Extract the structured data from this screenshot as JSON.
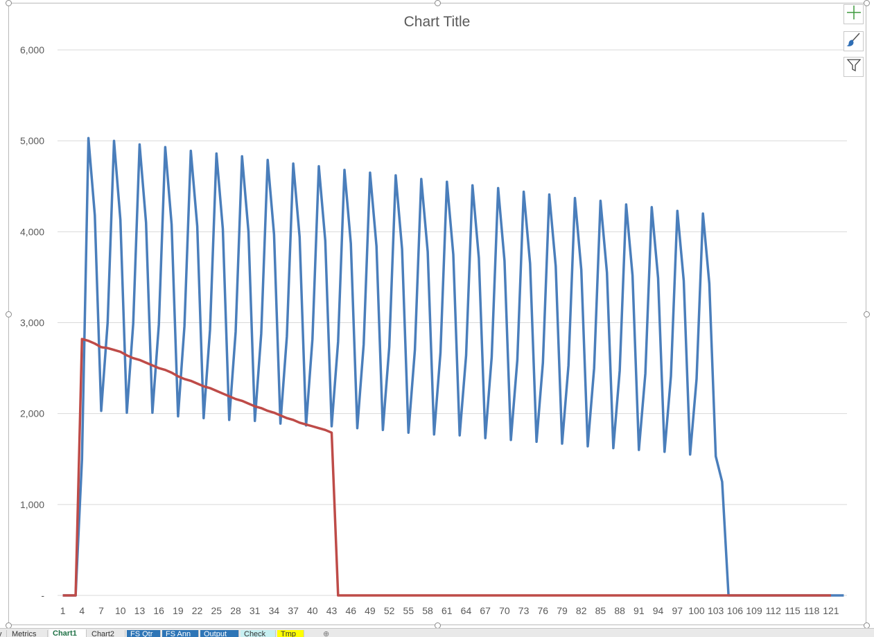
{
  "chart_data": {
    "type": "line",
    "title": "Chart Title",
    "ylim": [
      0,
      6000
    ],
    "yticks": [
      0,
      1000,
      2000,
      3000,
      4000,
      5000,
      6000
    ],
    "ytick_labels": [
      "-",
      "1,000",
      "2,000",
      "3,000",
      "4,000",
      "5,000",
      "6,000"
    ],
    "xtick_labels": [
      "1",
      "4",
      "7",
      "10",
      "13",
      "16",
      "19",
      "22",
      "25",
      "28",
      "31",
      "34",
      "37",
      "40",
      "43",
      "46",
      "49",
      "52",
      "55",
      "58",
      "61",
      "64",
      "67",
      "70",
      "73",
      "76",
      "79",
      "82",
      "85",
      "88",
      "91",
      "94",
      "97",
      "100",
      "103",
      "106",
      "109",
      "112",
      "115",
      "118",
      "121"
    ],
    "x_count": 123,
    "grid": true,
    "series": [
      {
        "color": "#4a7ebb",
        "values": [
          0,
          0,
          0,
          1500,
          5030,
          4180,
          2030,
          3000,
          5000,
          4130,
          2010,
          2990,
          4960,
          4100,
          2010,
          2980,
          4930,
          4080,
          1970,
          2960,
          4890,
          4060,
          1950,
          2920,
          4860,
          4030,
          1930,
          2900,
          4830,
          4000,
          1920,
          2880,
          4790,
          3970,
          1890,
          2850,
          4750,
          3940,
          1870,
          2820,
          4720,
          3900,
          1860,
          2790,
          4680,
          3870,
          1840,
          2760,
          4650,
          3840,
          1820,
          2730,
          4620,
          3810,
          1790,
          2700,
          4580,
          3780,
          1770,
          2670,
          4550,
          3750,
          1760,
          2640,
          4510,
          3710,
          1730,
          2620,
          4480,
          3680,
          1710,
          2590,
          4440,
          3650,
          1690,
          2560,
          4410,
          3620,
          1670,
          2530,
          4370,
          3580,
          1640,
          2500,
          4340,
          3550,
          1620,
          2470,
          4300,
          3520,
          1600,
          2440,
          4270,
          3490,
          1580,
          2410,
          4230,
          3460,
          1550,
          2380,
          4200,
          3430,
          1530,
          1250,
          0,
          0,
          0,
          0,
          0,
          0,
          0,
          0,
          0,
          0,
          0,
          0,
          0,
          0,
          0,
          0,
          0,
          0,
          0
        ]
      },
      {
        "color": "#be4b48",
        "values": [
          0,
          0,
          0,
          2820,
          2800,
          2770,
          2730,
          2720,
          2700,
          2680,
          2640,
          2610,
          2590,
          2560,
          2530,
          2500,
          2480,
          2450,
          2410,
          2380,
          2360,
          2330,
          2300,
          2280,
          2250,
          2220,
          2190,
          2160,
          2140,
          2110,
          2080,
          2060,
          2030,
          2010,
          1980,
          1950,
          1930,
          1900,
          1880,
          1860,
          1840,
          1820,
          1790,
          0,
          0,
          0,
          0,
          0,
          0,
          0,
          0,
          0,
          0,
          0,
          0,
          0,
          0,
          0,
          0,
          0,
          0,
          0,
          0,
          0,
          0,
          0,
          0,
          0,
          0,
          0,
          0,
          0,
          0,
          0,
          0,
          0,
          0,
          0,
          0,
          0,
          0,
          0,
          0,
          0,
          0,
          0,
          0,
          0,
          0,
          0,
          0,
          0,
          0,
          0,
          0,
          0,
          0,
          0,
          0,
          0,
          0,
          0,
          0,
          0,
          0,
          0,
          0,
          0,
          0,
          0,
          0,
          0,
          0,
          0,
          0,
          0,
          0,
          0,
          0,
          0,
          0
        ]
      }
    ]
  },
  "side_buttons": {
    "add_chart_element": "plus-icon",
    "chart_styles": "brush-icon",
    "chart_filters": "filter-icon",
    "accent_plus": "#3e9a3e",
    "accent_brush": "#2f6eb5"
  },
  "sheet_tabs": [
    {
      "label": "y",
      "bg": "#e9e9e9",
      "fg": "#333333"
    },
    {
      "label": "Metrics",
      "bg": "#e9e9e9",
      "fg": "#333333"
    },
    {
      "label": "Chart1",
      "bg": "#ffffff",
      "fg": "#1e7145",
      "active": true
    },
    {
      "label": "Chart2",
      "bg": "#e9e9e9",
      "fg": "#333333"
    },
    {
      "label": "FS Qtr",
      "bg": "#2e75b6",
      "fg": "#ffffff"
    },
    {
      "label": "FS Ann",
      "bg": "#2e75b6",
      "fg": "#ffffff"
    },
    {
      "label": "Output",
      "bg": "#2e75b6",
      "fg": "#ffffff"
    },
    {
      "label": "Check",
      "bg": "#c7f0f2",
      "fg": "#333333"
    },
    {
      "label": "Tmp",
      "bg": "#ffff00",
      "fg": "#333333"
    }
  ]
}
